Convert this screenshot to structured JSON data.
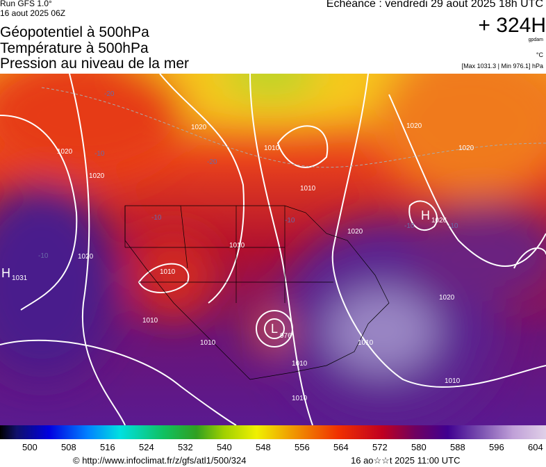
{
  "header": {
    "run": "Run GFS 1.0°",
    "run_date": "16 aout 2025 06Z",
    "titles": [
      "Géopotentiel à 500hPa",
      "Température à 500hPa",
      "Pression au niveau de la mer"
    ],
    "echeance": "Echéance : vendredi 29 aout 2025 18h UTC",
    "lead": "+ 324H",
    "unit_geo": "gpdam",
    "unit_temp": "°C",
    "extremes": "[Max 1031.3 | Min 976.1] hPa"
  },
  "map": {
    "highs": [
      {
        "symbol": "H",
        "value": 1031
      },
      {
        "symbol": "H",
        "value": 1026
      }
    ],
    "lows": [
      {
        "symbol": "L",
        "value": 976
      }
    ],
    "isobar_labels": [
      1020,
      1020,
      1020,
      1010,
      1010,
      1010,
      1020,
      1020,
      1010,
      1010,
      1010,
      1010,
      1020,
      1020,
      1020,
      1010,
      1010,
      1010
    ],
    "temp_labels": [
      -20,
      -20,
      -10,
      -10,
      -10,
      -10,
      -10,
      -10
    ]
  },
  "colorbar": {
    "ticks": [
      500,
      508,
      516,
      524,
      532,
      540,
      548,
      556,
      564,
      572,
      580,
      588,
      596,
      604
    ]
  },
  "footer": {
    "source": "© http://www.infoclimat.fr/z/gfs/atl1/500/324",
    "generated": "16 ao☆☆t 2025 11:00 UTC"
  }
}
